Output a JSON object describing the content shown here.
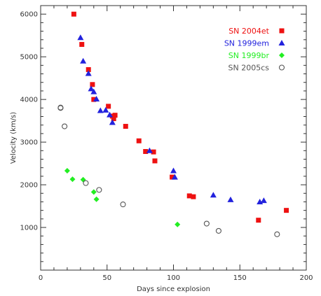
{
  "chart_data": {
    "type": "scatter",
    "title": "",
    "xlabel": "Days since explosion",
    "ylabel": "Velocity (km/s)",
    "xlim": [
      0,
      200
    ],
    "ylim": [
      0,
      6200
    ],
    "x_ticks": [
      0,
      50,
      100,
      150,
      200
    ],
    "y_ticks": [
      1000,
      2000,
      3000,
      4000,
      5000,
      6000
    ],
    "grid": false,
    "legend_position": "top-right",
    "series": [
      {
        "name": "SN 2004et",
        "color": "#ee1111",
        "marker": "square",
        "points": [
          [
            25,
            6000
          ],
          [
            31,
            5290
          ],
          [
            36,
            4700
          ],
          [
            39,
            4350
          ],
          [
            40,
            4000
          ],
          [
            51,
            3840
          ],
          [
            54,
            3610
          ],
          [
            55,
            3550
          ],
          [
            56,
            3630
          ],
          [
            64,
            3370
          ],
          [
            74,
            3030
          ],
          [
            79,
            2780
          ],
          [
            85,
            2770
          ],
          [
            86,
            2560
          ],
          [
            99,
            2180
          ],
          [
            112,
            1740
          ],
          [
            115,
            1720
          ],
          [
            164,
            1170
          ],
          [
            185,
            1400
          ]
        ]
      },
      {
        "name": "SN 1999em",
        "color": "#2222dd",
        "marker": "triangle",
        "points": [
          [
            30,
            5450
          ],
          [
            32,
            4900
          ],
          [
            36,
            4610
          ],
          [
            38,
            4250
          ],
          [
            40,
            4180
          ],
          [
            42,
            4010
          ],
          [
            45,
            3740
          ],
          [
            49,
            3750
          ],
          [
            52,
            3640
          ],
          [
            54,
            3460
          ],
          [
            82,
            2800
          ],
          [
            100,
            2330
          ],
          [
            101,
            2180
          ],
          [
            130,
            1760
          ],
          [
            143,
            1650
          ],
          [
            165,
            1600
          ],
          [
            168,
            1630
          ]
        ]
      },
      {
        "name": "SN 1999br",
        "color": "#22ee22",
        "marker": "diamond",
        "points": [
          [
            20,
            2330
          ],
          [
            24,
            2130
          ],
          [
            32,
            2120
          ],
          [
            40,
            1830
          ],
          [
            42,
            1660
          ],
          [
            103,
            1070
          ]
        ]
      },
      {
        "name": "SN 2005cs",
        "color": "#555555",
        "marker": "circle",
        "points": [
          [
            15,
            3800
          ],
          [
            15,
            3810
          ],
          [
            18,
            3370
          ],
          [
            34,
            2040
          ],
          [
            44,
            1880
          ],
          [
            62,
            1540
          ],
          [
            125,
            1090
          ],
          [
            134,
            920
          ],
          [
            178,
            840
          ]
        ]
      }
    ]
  }
}
